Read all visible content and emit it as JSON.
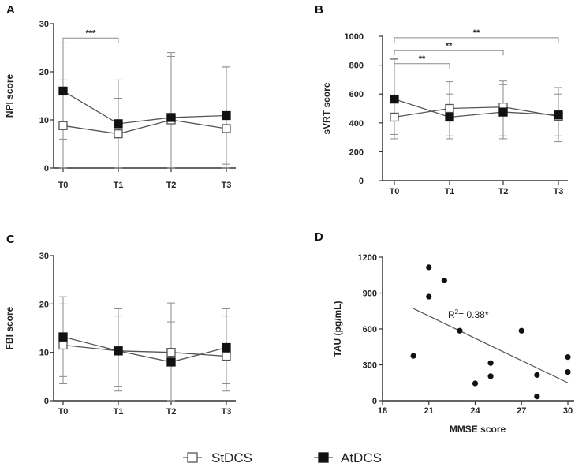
{
  "chart_data": [
    {
      "panel": "A",
      "type": "line",
      "ylabel": "NPI score",
      "xlabel": "",
      "categories": [
        "T0",
        "T1",
        "T2",
        "T3"
      ],
      "ylim": [
        0,
        30
      ],
      "yticks": [
        "0",
        "10",
        "20",
        "30"
      ],
      "series": [
        {
          "name": "StDCS",
          "marker": "square-open",
          "values": [
            8.8,
            7.1,
            10.0,
            8.2
          ],
          "err_low": [
            6.0,
            0.0,
            0.0,
            0.8
          ],
          "err_high": [
            26.0,
            14.5,
            23.2,
            21.0
          ]
        },
        {
          "name": "AtDCS",
          "marker": "square-filled",
          "values": [
            16.0,
            9.2,
            10.5,
            10.9
          ],
          "err_low": [
            0.0,
            0.0,
            0.0,
            0.0
          ],
          "err_high": [
            18.3,
            18.3,
            24.0,
            21.0
          ]
        }
      ],
      "significance": [
        {
          "from": "T0",
          "to": "T1",
          "label": "***",
          "level": 27.0
        }
      ]
    },
    {
      "panel": "B",
      "type": "line",
      "ylabel": "sVRT score",
      "xlabel": "",
      "categories": [
        "T0",
        "T1",
        "T2",
        "T3"
      ],
      "ylim": [
        0,
        1000
      ],
      "yticks": [
        "0",
        "200",
        "400",
        "600",
        "800",
        "1000"
      ],
      "series": [
        {
          "name": "StDCS",
          "marker": "square-open",
          "values": [
            440,
            500,
            510,
            445
          ],
          "err_low": [
            290,
            310,
            310,
            310
          ],
          "err_high": [
            845,
            685,
            690,
            645
          ]
        },
        {
          "name": "AtDCS",
          "marker": "square-filled",
          "values": [
            565,
            440,
            475,
            455
          ],
          "err_low": [
            320,
            290,
            290,
            270
          ],
          "err_high": [
            840,
            600,
            665,
            600
          ]
        }
      ],
      "significance": [
        {
          "from": "T0",
          "to": "T1",
          "label": "**",
          "level": 810
        },
        {
          "from": "T0",
          "to": "T2",
          "label": "**",
          "level": 900
        },
        {
          "from": "T0",
          "to": "T3",
          "label": "**",
          "level": 990
        }
      ]
    },
    {
      "panel": "C",
      "type": "line",
      "ylabel": "FBI score",
      "xlabel": "",
      "categories": [
        "T0",
        "T1",
        "T2",
        "T3"
      ],
      "ylim": [
        0,
        30
      ],
      "yticks": [
        "0",
        "10",
        "20",
        "30"
      ],
      "series": [
        {
          "name": "StDCS",
          "marker": "square-open",
          "values": [
            11.5,
            10.3,
            10.0,
            9.2
          ],
          "err_low": [
            3.5,
            2.0,
            0.0,
            2.0
          ],
          "err_high": [
            21.5,
            19.0,
            20.2,
            19.0
          ]
        },
        {
          "name": "AtDCS",
          "marker": "square-filled",
          "values": [
            13.2,
            10.3,
            8.0,
            11.0
          ],
          "err_low": [
            5.0,
            3.0,
            0.0,
            3.5
          ],
          "err_high": [
            20.0,
            17.5,
            16.3,
            17.5
          ]
        }
      ],
      "significance": []
    },
    {
      "panel": "D",
      "type": "scatter",
      "xlabel": "MMSE score",
      "ylabel": "TAU (pg/mL)",
      "xlim": [
        18,
        30
      ],
      "ylim": [
        0,
        1200
      ],
      "xticks": [
        "18",
        "21",
        "24",
        "27",
        "30"
      ],
      "yticks": [
        "0",
        "300",
        "600",
        "900",
        "1200"
      ],
      "points": [
        {
          "x": 20,
          "y": 375
        },
        {
          "x": 21,
          "y": 1115
        },
        {
          "x": 21,
          "y": 870
        },
        {
          "x": 22,
          "y": 1005
        },
        {
          "x": 23,
          "y": 585
        },
        {
          "x": 24,
          "y": 145
        },
        {
          "x": 25,
          "y": 315
        },
        {
          "x": 25,
          "y": 205
        },
        {
          "x": 27,
          "y": 585
        },
        {
          "x": 28,
          "y": 215
        },
        {
          "x": 28,
          "y": 35
        },
        {
          "x": 30,
          "y": 365
        },
        {
          "x": 30,
          "y": 240
        }
      ],
      "regression": {
        "x0": 20,
        "y0": 770,
        "x1": 30,
        "y1": 150
      },
      "annotation": {
        "text": "R",
        "sup": "2",
        "rest": "= 0.38*"
      }
    }
  ],
  "legend": [
    {
      "label": "StDCS",
      "marker": "square-open"
    },
    {
      "label": "AtDCS",
      "marker": "square-filled"
    }
  ]
}
